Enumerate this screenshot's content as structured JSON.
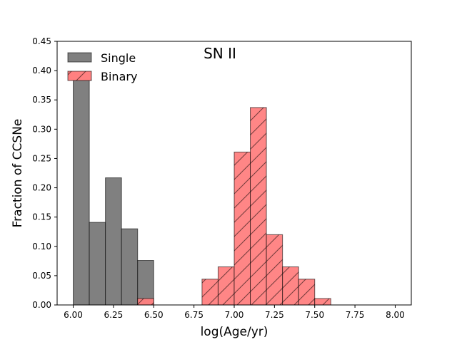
{
  "chart_data": {
    "type": "bar",
    "title": "SN II",
    "xlabel": "log(Age/yr)",
    "ylabel": "Fraction of CCSNe",
    "xlim": [
      5.9,
      8.1
    ],
    "ylim": [
      0,
      0.45
    ],
    "bin_width": 0.1,
    "xticks": [
      6.0,
      6.25,
      6.5,
      6.75,
      7.0,
      7.25,
      7.5,
      7.75,
      8.0
    ],
    "xtick_labels": [
      "6.00",
      "6.25",
      "6.50",
      "6.75",
      "7.00",
      "7.25",
      "7.50",
      "7.75",
      "8.00"
    ],
    "yticks": [
      0,
      0.05,
      0.1,
      0.15,
      0.2,
      0.25,
      0.3,
      0.35,
      0.4,
      0.45
    ],
    "ytick_labels": [
      "0.00",
      "0.05",
      "0.10",
      "0.15",
      "0.20",
      "0.25",
      "0.30",
      "0.35",
      "0.40",
      "0.45"
    ],
    "legend_position": "top-left",
    "series": [
      {
        "name": "Single",
        "color": "#808080",
        "hatch": false,
        "bin_starts": [
          6.0,
          6.1,
          6.2,
          6.3,
          6.4
        ],
        "values": [
          0.391,
          0.141,
          0.217,
          0.13,
          0.076
        ]
      },
      {
        "name": "Binary",
        "color": "#ff8080",
        "hatch": true,
        "bin_starts": [
          6.4,
          6.8,
          6.9,
          7.0,
          7.1,
          7.2,
          7.3,
          7.4,
          7.5
        ],
        "values": [
          0.011,
          0.044,
          0.065,
          0.261,
          0.337,
          0.12,
          0.065,
          0.044,
          0.011
        ]
      }
    ]
  }
}
